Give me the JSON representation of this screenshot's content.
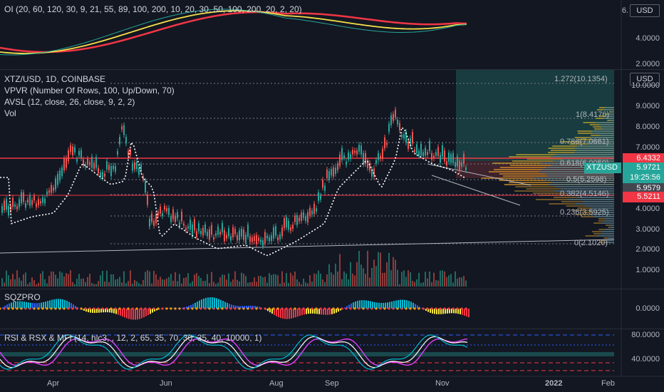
{
  "oi_pane": {
    "title": "OI (20, 60, 120, 30, 9, 21, 55, 89, 100, 200, 10, 20, 30, 50, 100, 200, 20, 2, 20)",
    "currency": "USD",
    "axis": [
      "6.",
      "4.0000",
      "2.0000"
    ]
  },
  "main_pane": {
    "symbol": "XTZ/USD, 1D, COINBASE",
    "indicators": [
      "VPVR (Number Of Rows, 100, Up/Down, 70)",
      "AVSL (12, close, 26, close, 9, 2, 2)",
      "Vol"
    ],
    "currency": "USD",
    "axis": [
      "10.0000",
      "9.0000",
      "8.0000",
      "7.0000",
      "4.0000",
      "3.0000",
      "2.0000",
      "1.0000"
    ],
    "fib": [
      "1.272(10.1354)",
      "1(8.4176)",
      "0.786(7.0661)",
      "0.618(6.0059)",
      "0.5(5.2598)",
      "0.382(4.5146)",
      "0.236(3.5925)",
      "0(2.1020)"
    ],
    "tags": {
      "high": "6.4332",
      "price": "5.9721",
      "symbol": "XTZUSD",
      "countdown": "19:25:56",
      "mid": "5.9579",
      "low": "5.5211"
    }
  },
  "sqz_pane": {
    "title": "SQZPRO",
    "axis": [
      "0.0000"
    ]
  },
  "rsi_pane": {
    "title": "RSI & RSX & MFI (14, hlc3, , 12, 2, 65, 35, 70, 30, 35, 40, 10000, 1)",
    "axis": [
      "80.0000",
      "40.0000"
    ]
  },
  "time_axis": [
    "Apr",
    "Jun",
    "Aug",
    "Sep",
    "Nov",
    "2022",
    "Feb"
  ],
  "colors": {
    "background": "#131722",
    "up": "#26a69a",
    "down": "#ef5350",
    "accent_red": "#f23645",
    "teal_tag": "#26a69a"
  }
}
